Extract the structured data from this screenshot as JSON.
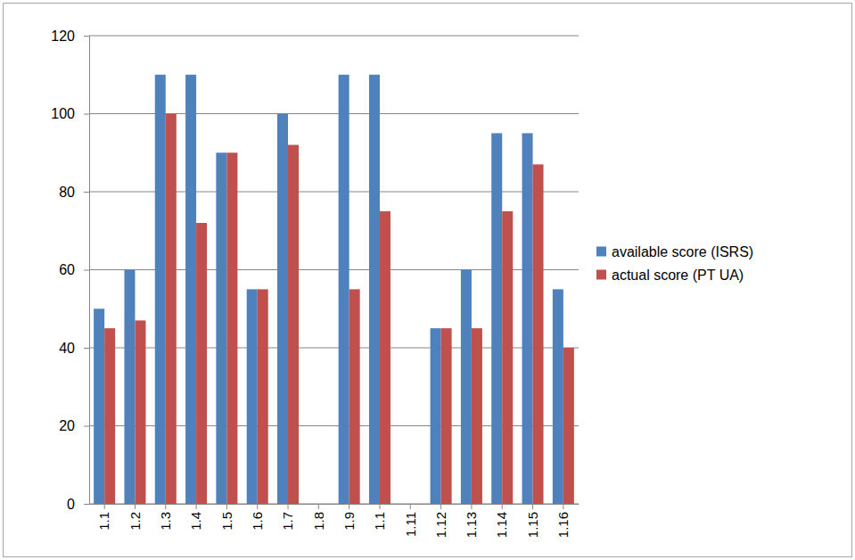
{
  "chart_data": {
    "type": "bar",
    "categories": [
      "1.1",
      "1.2",
      "1.3",
      "1.4",
      "1.5",
      "1.6",
      "1.7",
      "1.8",
      "1.9",
      "1.1",
      "1.11",
      "1.12",
      "1.13",
      "1.14",
      "1.15",
      "1.16"
    ],
    "series": [
      {
        "name": "available score (ISRS)",
        "color": "#4f81bd",
        "values": [
          50,
          60,
          110,
          110,
          90,
          55,
          100,
          null,
          110,
          110,
          null,
          45,
          60,
          95,
          95,
          55
        ]
      },
      {
        "name": "actual score (PT UA)",
        "color": "#c0504d",
        "values": [
          45,
          47,
          100,
          72,
          90,
          55,
          92,
          null,
          55,
          75,
          null,
          45,
          45,
          75,
          87,
          40
        ]
      }
    ],
    "ylim": [
      0,
      120
    ],
    "yticks": [
      0,
      20,
      40,
      60,
      80,
      100,
      120
    ],
    "grid": true,
    "legend": "right"
  }
}
